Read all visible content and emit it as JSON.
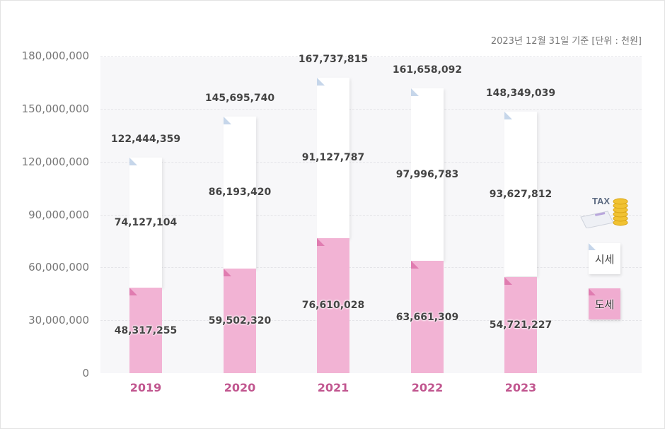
{
  "note": "2023년 12월 31일 기준 [단위 : 천원]",
  "legend": {
    "city": "시세",
    "province": "도세",
    "icon_text": "TAX"
  },
  "colors": {
    "province": "#f2b3d4",
    "city": "#ffffff",
    "year_label": "#c1568f"
  },
  "chart_data": {
    "type": "bar",
    "stacked": true,
    "categories": [
      "2019",
      "2020",
      "2021",
      "2022",
      "2023"
    ],
    "series": [
      {
        "name": "도세",
        "values": [
          48317255,
          59502320,
          76610028,
          63661309,
          54721227
        ],
        "labels": [
          "48,317,255",
          "59,502,320",
          "76,610,028",
          "63,661,309",
          "54,721,227"
        ]
      },
      {
        "name": "시세",
        "values": [
          74127104,
          86193420,
          91127787,
          97996783,
          93627812
        ],
        "labels": [
          "74,127,104",
          "86,193,420",
          "91,127,787",
          "97,996,783",
          "93,627,812"
        ]
      }
    ],
    "totals": [
      122444359,
      145695740,
      167737815,
      161658092,
      148349039
    ],
    "total_labels": [
      "122,444,359",
      "145,695,740",
      "167,737,815",
      "161,658,092",
      "148,349,039"
    ],
    "ylim": [
      0,
      180000000
    ],
    "yticks": [
      "0",
      "30,000,000",
      "60,000,000",
      "90,000,000",
      "120,000,000",
      "150,000,000",
      "180,000,000"
    ],
    "grid": true,
    "legend_position": "right"
  }
}
